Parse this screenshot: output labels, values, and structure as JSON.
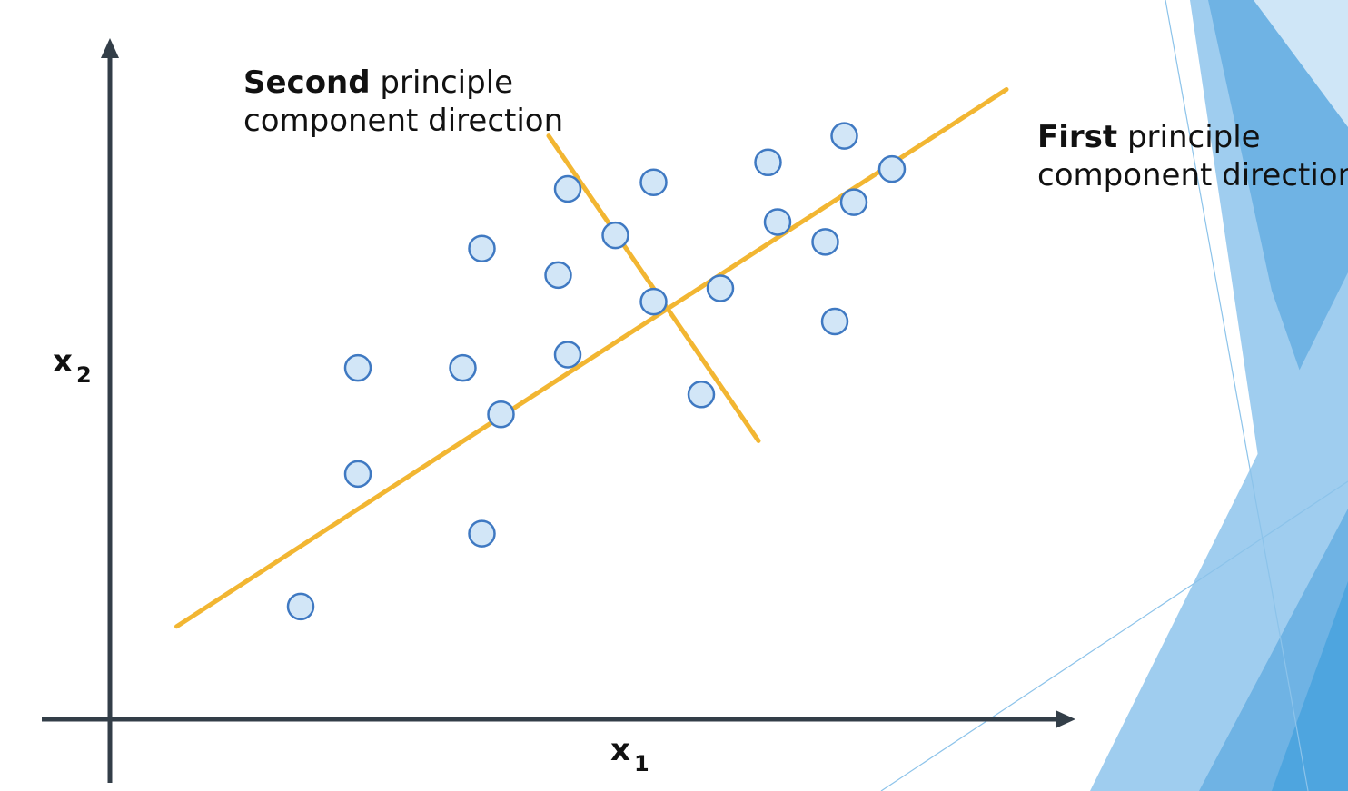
{
  "slide": {
    "decoration_colors": [
      "#9fcdef",
      "#6fb3e4",
      "#cfe6f7",
      "#4ea5df"
    ]
  },
  "chart_data": {
    "type": "scatter",
    "title": "",
    "xlabel": {
      "base": "x",
      "sub": "1"
    },
    "ylabel": {
      "base": "x",
      "sub": "2"
    },
    "xlim": [
      0,
      100
    ],
    "ylim": [
      0,
      100
    ],
    "grid": false,
    "point_fill": "#d2e6f7",
    "point_stroke": "#3f79c2",
    "line_color": "#f2b632",
    "axis_color": "#333e48",
    "points": [
      {
        "x": 20,
        "y": 17
      },
      {
        "x": 26,
        "y": 37
      },
      {
        "x": 26,
        "y": 53
      },
      {
        "x": 39,
        "y": 28
      },
      {
        "x": 37,
        "y": 53
      },
      {
        "x": 39,
        "y": 71
      },
      {
        "x": 41,
        "y": 46
      },
      {
        "x": 47,
        "y": 67
      },
      {
        "x": 48,
        "y": 55
      },
      {
        "x": 48,
        "y": 80
      },
      {
        "x": 53,
        "y": 73
      },
      {
        "x": 57,
        "y": 81
      },
      {
        "x": 57,
        "y": 63
      },
      {
        "x": 62,
        "y": 49
      },
      {
        "x": 64,
        "y": 65
      },
      {
        "x": 69,
        "y": 84
      },
      {
        "x": 70,
        "y": 75
      },
      {
        "x": 75,
        "y": 72
      },
      {
        "x": 76,
        "y": 60
      },
      {
        "x": 77,
        "y": 88
      },
      {
        "x": 78,
        "y": 78
      },
      {
        "x": 82,
        "y": 83
      }
    ],
    "lines": [
      {
        "name": "first-principal-component",
        "from": {
          "x": 7,
          "y": 14
        },
        "to": {
          "x": 94,
          "y": 95
        },
        "annotation": {
          "bold": "First",
          "rest": " principle",
          "line2": "component direction"
        }
      },
      {
        "name": "second-principal-component",
        "from": {
          "x": 46,
          "y": 88
        },
        "to": {
          "x": 68,
          "y": 42
        },
        "annotation": {
          "bold": "Second",
          "rest": " principle",
          "line2": "component direction"
        }
      }
    ]
  }
}
